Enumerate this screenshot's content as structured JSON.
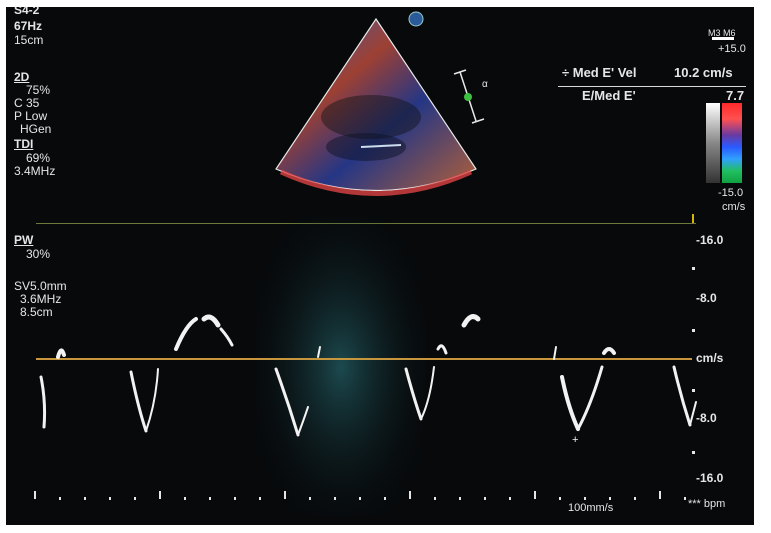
{
  "left_panel": {
    "probe": "S4-2",
    "frame_rate": "67Hz",
    "depth": "15cm",
    "twod": {
      "label": "2D",
      "gain": "75%",
      "compress": "C 35",
      "power": "P Low",
      "freq": "HGen"
    },
    "tdi": {
      "label": "TDI",
      "gain": "69%",
      "freq": "3.4MHz"
    },
    "pw": {
      "label": "PW",
      "gain": "30%",
      "sample_volume": "SV5.0mm",
      "freq": "3.6MHz",
      "gate_depth": "8.5cm"
    }
  },
  "top_right": {
    "m_indicator": "M3 M6",
    "scale_top": "+15.0",
    "scale_bottom": "-15.0",
    "scale_unit": "cm/s"
  },
  "measurements": {
    "line1_label": "÷ Med E' Vel",
    "line1_value": "10.2 cm/s",
    "line2_label": "E/Med E'",
    "line2_value": "7.7"
  },
  "velocity_axis": {
    "ticks": [
      "-16.0",
      "-8.0",
      "cm/s",
      "-8.0",
      "-16.0"
    ]
  },
  "bottom": {
    "sweep_speed": "100mm/s",
    "heart_rate": "*** bpm"
  },
  "colors": {
    "baseline": "#c8963c",
    "text": "#e6e6e6",
    "background": "#07090b",
    "doppler_trace": "#f2f2f2"
  }
}
